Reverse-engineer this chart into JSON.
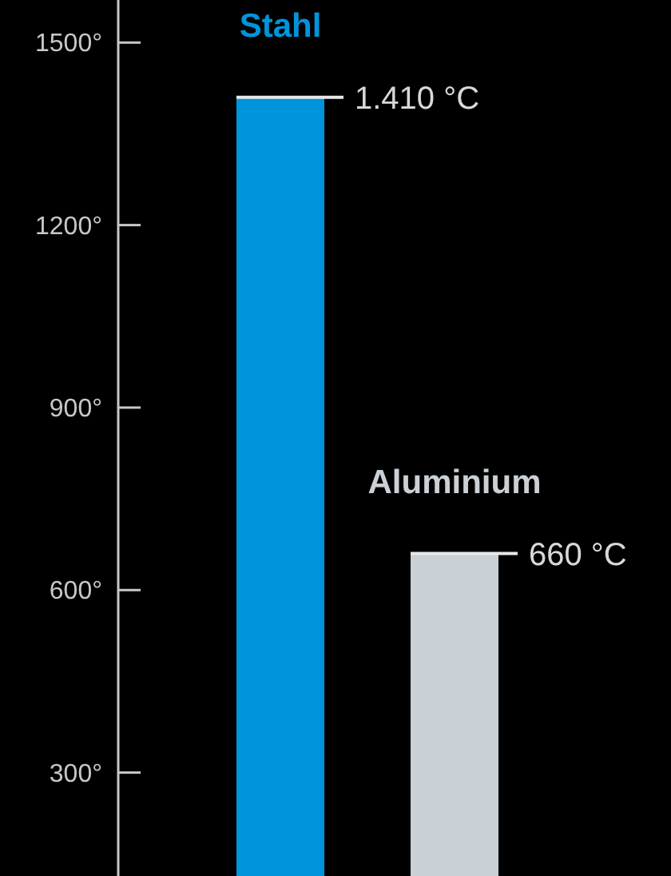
{
  "chart_data": {
    "type": "bar",
    "categories": [
      "Stahl",
      "Aluminium"
    ],
    "values": [
      1410,
      660
    ],
    "value_labels": [
      "1.410 °C",
      "660 °C"
    ],
    "colors": [
      "#0095db",
      "#c9d0d6"
    ],
    "ylim": [
      130,
      1570
    ],
    "yticks": [
      {
        "value": 300,
        "label": "300°"
      },
      {
        "value": 600,
        "label": "600°"
      },
      {
        "value": 900,
        "label": "900°"
      },
      {
        "value": 1200,
        "label": "1200°"
      },
      {
        "value": 1500,
        "label": "1500°"
      }
    ],
    "grid": false,
    "legend": false
  }
}
